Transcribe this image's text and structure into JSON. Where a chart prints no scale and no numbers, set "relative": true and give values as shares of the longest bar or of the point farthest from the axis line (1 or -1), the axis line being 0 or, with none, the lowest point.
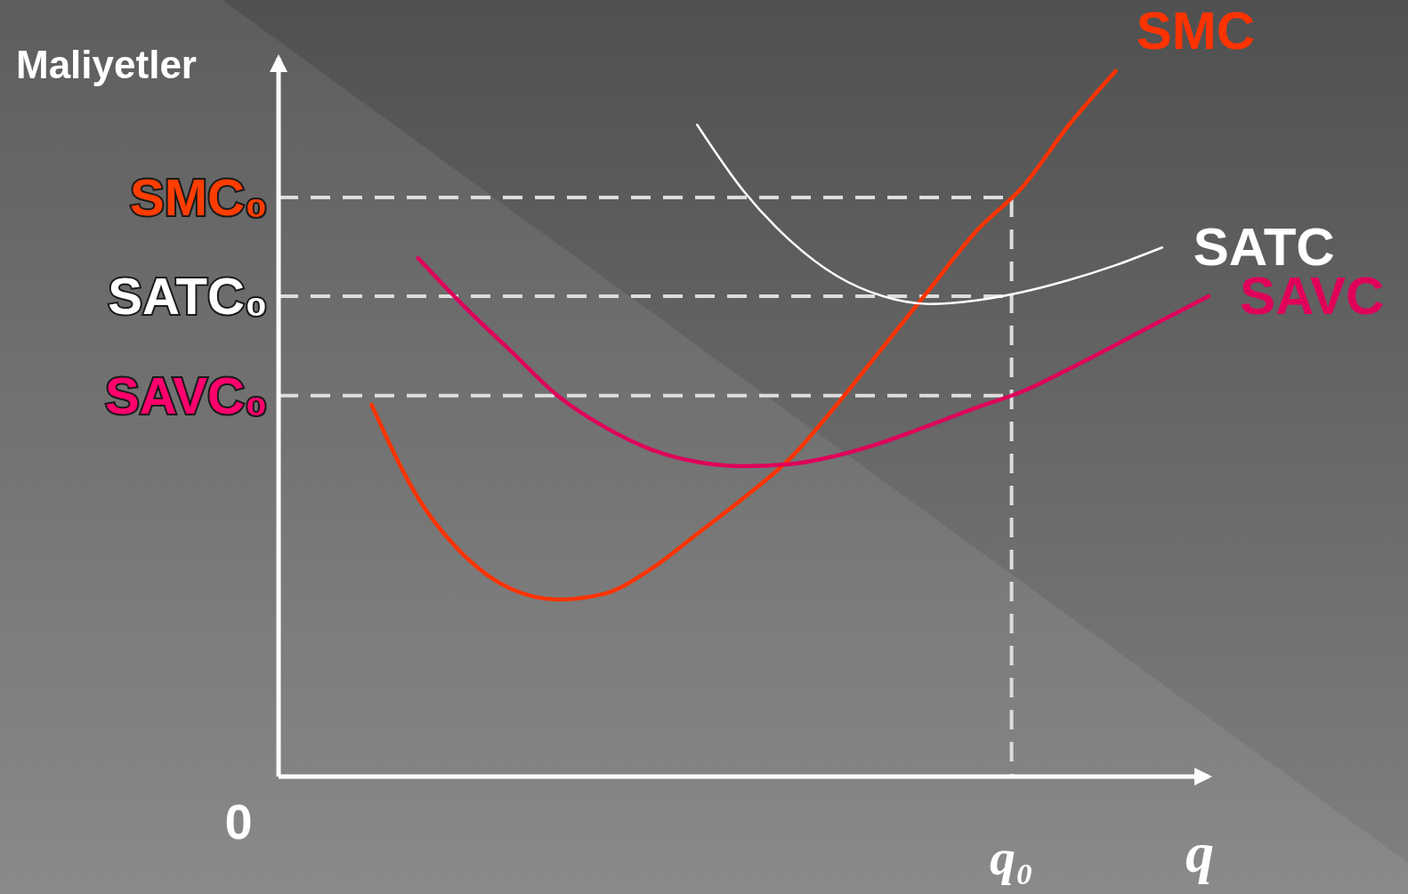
{
  "chart_data": {
    "type": "line",
    "relative": true,
    "ylabel": "Maliyetler",
    "xlabel": "q",
    "categories": [
      null,
      null,
      null,
      null,
      null,
      null,
      null,
      null,
      null,
      null,
      null,
      null,
      null,
      null,
      null,
      null,
      null,
      null,
      null,
      null,
      null
    ],
    "series": [
      {
        "name": "SMC",
        "color": "#ff3300",
        "values": [
          null,
          null,
          0.527,
          0.395,
          0.313,
          0.266,
          0.251,
          0.259,
          0.294,
          0.344,
          0.395,
          0.451,
          0.527,
          0.609,
          0.691,
          0.773,
          0.836,
          0.924,
          1.0,
          null,
          null
        ]
      },
      {
        "name": "SATC",
        "color": "#ffffff",
        "values": [
          null,
          null,
          null,
          null,
          null,
          null,
          null,
          null,
          null,
          0.924,
          0.83,
          0.76,
          0.71,
          0.681,
          0.67,
          0.675,
          0.687,
          0.704,
          0.725,
          0.75,
          null
        ]
      },
      {
        "name": "SAVC",
        "color": "#e0005a",
        "values": [
          null,
          null,
          null,
          0.735,
          0.666,
          0.603,
          0.54,
          0.496,
          0.464,
          0.446,
          0.44,
          0.443,
          0.455,
          0.474,
          0.498,
          0.523,
          0.546,
          0.578,
          0.612,
          0.647,
          0.681
        ]
      }
    ],
    "ref_lines": [
      {
        "axis": "y",
        "value": 0.821,
        "label": "SMC₀",
        "color": "#dddddd",
        "line_style": "dashed"
      },
      {
        "axis": "y",
        "value": 0.681,
        "label": "SATC₀",
        "color": "#dddddd",
        "line_style": "dashed"
      },
      {
        "axis": "y",
        "value": 0.54,
        "label": "SAVC₀",
        "color": "#dddddd",
        "line_style": "dashed"
      }
    ],
    "annotations": [
      "0",
      "q₀"
    ],
    "line_style": "solid",
    "marker": "none"
  }
}
